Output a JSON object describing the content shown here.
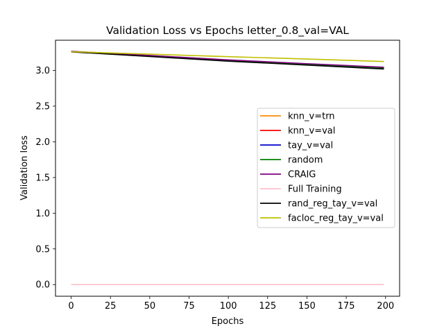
{
  "chart_data": {
    "type": "line",
    "title": "Validation Loss vs Epochs letter_0.8_val=VAL",
    "xlabel": "Epochs",
    "ylabel": "Validation loss",
    "xlim": [
      -9.95,
      208.95
    ],
    "ylim": [
      -0.163,
      3.423
    ],
    "xticks": [
      0,
      25,
      50,
      75,
      100,
      125,
      150,
      175,
      200
    ],
    "yticks": [
      0.0,
      0.5,
      1.0,
      1.5,
      2.0,
      2.5,
      3.0
    ],
    "ytick_labels": [
      "0.0",
      "0.5",
      "1.0",
      "1.5",
      "2.0",
      "2.5",
      "3.0"
    ],
    "grid": false,
    "legend_position": "center-right",
    "series": [
      {
        "name": "knn_v=trn",
        "color": "#ff8c00",
        "x": [
          0,
          50,
          100,
          150,
          199
        ],
        "y": [
          3.265,
          3.205,
          3.14,
          3.085,
          3.035
        ]
      },
      {
        "name": "knn_v=val",
        "color": "#ff0000",
        "x": [
          0,
          50,
          100,
          150,
          199
        ],
        "y": [
          3.265,
          3.205,
          3.14,
          3.085,
          3.035
        ]
      },
      {
        "name": "tay_v=val",
        "color": "#0000cd",
        "x": [
          0,
          50,
          100,
          150,
          199
        ],
        "y": [
          3.265,
          3.2,
          3.135,
          3.08,
          3.025
        ]
      },
      {
        "name": "random",
        "color": "#008000",
        "x": [
          0,
          50,
          100,
          150,
          199
        ],
        "y": [
          3.265,
          3.205,
          3.14,
          3.085,
          3.035
        ]
      },
      {
        "name": "CRAIG",
        "color": "#800080",
        "x": [
          0,
          50,
          100,
          150,
          199
        ],
        "y": [
          3.268,
          3.21,
          3.148,
          3.095,
          3.045
        ]
      },
      {
        "name": "Full Training",
        "color": "#ffc0cb",
        "x": [
          0,
          199
        ],
        "y": [
          0.0,
          0.0
        ]
      },
      {
        "name": "rand_reg_tay_v=val",
        "color": "#000000",
        "x": [
          0,
          50,
          100,
          150,
          199
        ],
        "y": [
          3.26,
          3.195,
          3.13,
          3.075,
          3.02
        ]
      },
      {
        "name": "facloc_reg_tay_v=val",
        "color": "#bfbf00",
        "x": [
          0,
          50,
          100,
          150,
          199
        ],
        "y": [
          3.262,
          3.228,
          3.193,
          3.16,
          3.125
        ]
      }
    ]
  }
}
